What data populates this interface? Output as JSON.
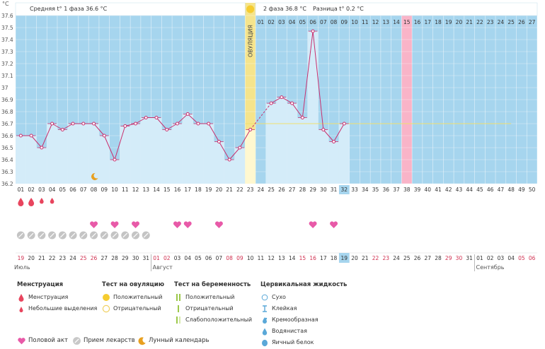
{
  "unit_label": "°C",
  "stats": {
    "phase1": "Средняя t° 1 фаза 36.6 °C",
    "phase2": "2 фаза 36.8 °C",
    "diff": "Разница t° 0.2 °C"
  },
  "ovulation_label": "ОВУЛЯЦИЯ",
  "chart_data": {
    "type": "line",
    "ylim": [
      36.2,
      37.6
    ],
    "yticks": [
      "37.6",
      "37.5",
      "37.4",
      "37.3",
      "37.2",
      "37.1",
      "37",
      "36.9",
      "36.8",
      "36.7",
      "36.6",
      "36.5",
      "36.4",
      "36.3",
      "36.2"
    ],
    "cycle_days": [
      "01",
      "02",
      "03",
      "04",
      "05",
      "06",
      "07",
      "08",
      "09",
      "10",
      "11",
      "12",
      "13",
      "14",
      "15",
      "16",
      "17",
      "18",
      "19",
      "20",
      "21",
      "22",
      "23",
      "24",
      "25",
      "26",
      "27",
      "28",
      "29",
      "30",
      "31",
      "32",
      "33",
      "34",
      "35",
      "36",
      "37",
      "38",
      "39",
      "40",
      "41",
      "42",
      "43",
      "44",
      "45",
      "46",
      "47",
      "48",
      "49",
      "50"
    ],
    "phase2_days": [
      "01",
      "02",
      "03",
      "04",
      "05",
      "06",
      "07",
      "08",
      "09",
      "10",
      "11",
      "12",
      "13",
      "14",
      "15",
      "16",
      "17",
      "18",
      "19",
      "20",
      "21",
      "22",
      "23",
      "24",
      "25",
      "26",
      "27"
    ],
    "phase2_highlight": "15",
    "temperatures": [
      36.6,
      36.6,
      36.5,
      36.7,
      36.65,
      36.7,
      36.7,
      36.7,
      36.6,
      36.4,
      36.68,
      36.7,
      36.75,
      36.75,
      36.65,
      36.7,
      36.78,
      36.7,
      36.7,
      36.55,
      36.4,
      36.5,
      36.65,
      null,
      36.87,
      36.92,
      36.87,
      36.75,
      37.47,
      36.65,
      36.55,
      36.7
    ],
    "baseline_temp": 36.7,
    "ovulation_day": 23,
    "current_day": 32,
    "menstruation_days": [
      1,
      2
    ],
    "spotting_days": [
      3,
      4
    ],
    "intercourse_days": [
      8,
      10,
      12,
      16,
      17,
      20,
      29,
      31
    ],
    "medication_days": [
      1,
      2,
      3,
      4,
      5,
      6,
      7,
      8,
      9,
      10,
      11,
      12,
      13
    ],
    "lunar_day": 8,
    "dates": [
      "19",
      "20",
      "21",
      "22",
      "23",
      "24",
      "25",
      "26",
      "27",
      "28",
      "29",
      "30",
      "31",
      "01",
      "02",
      "03",
      "04",
      "05",
      "06",
      "07",
      "08",
      "09",
      "10",
      "11",
      "12",
      "13",
      "14",
      "15",
      "16",
      "17",
      "18",
      "19",
      "20",
      "21",
      "22",
      "23",
      "24",
      "25",
      "26",
      "27",
      "28",
      "29",
      "30",
      "31",
      "01",
      "02",
      "03",
      "04",
      "05",
      "06"
    ],
    "weekend_days": [
      1,
      7,
      8,
      14,
      15,
      21,
      22,
      28,
      29,
      35,
      36,
      42,
      43,
      49,
      50
    ],
    "months": [
      {
        "name": "Июль",
        "start": 1
      },
      {
        "name": "Август",
        "start": 14
      },
      {
        "name": "Сентябрь",
        "start": 45
      }
    ]
  },
  "colors": {
    "sky": "#a6d5ee",
    "bar": "#d4ecf9",
    "line": "#c8306e",
    "ovulation": "#f5e48c",
    "highlight": "#f9b4c8",
    "heart": "#e85aa8",
    "drop": "#e8455e",
    "baseline": "#f0e070"
  },
  "legend": {
    "menstruation": {
      "title": "Менструация",
      "items": [
        "Менструация",
        "Небольшие выделения"
      ]
    },
    "ovulation_test": {
      "title": "Тест на овуляцию",
      "items": [
        "Положительный",
        "Отрицательный"
      ]
    },
    "pregnancy_test": {
      "title": "Тест на беременность",
      "items": [
        "Положительный",
        "Отрицательный",
        "Слабоположительный"
      ]
    },
    "cervical": {
      "title": "Цервикальная жидкость",
      "items": [
        "Сухо",
        "Клейкая",
        "Кремообразная",
        "Водянистая",
        "Яичный белок"
      ]
    },
    "bottom": {
      "intercourse": "Половой акт",
      "medication": "Прием лекарств",
      "lunar": "Лунный календарь"
    }
  }
}
